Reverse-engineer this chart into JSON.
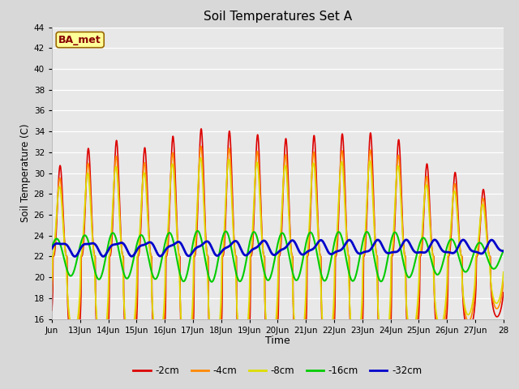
{
  "title": "Soil Temperatures Set A",
  "xlabel": "Time",
  "ylabel": "Soil Temperature (C)",
  "annotation": "BA_met",
  "ylim": [
    16,
    44
  ],
  "xlim_days": [
    12,
    28
  ],
  "x_tick_labels": [
    "Jun",
    "13Jun",
    "14Jun",
    "15Jun",
    "16Jun",
    "17Jun",
    "18Jun",
    "19Jun",
    "20Jun",
    "21Jun",
    "22Jun",
    "23Jun",
    "24Jun",
    "25Jun",
    "26Jun",
    "27Jun",
    "28"
  ],
  "x_tick_positions": [
    12,
    13,
    14,
    15,
    16,
    17,
    18,
    19,
    20,
    21,
    22,
    23,
    24,
    25,
    26,
    27,
    28
  ],
  "series_colors": {
    "-2cm": "#dd0000",
    "-4cm": "#ff8800",
    "-8cm": "#dddd00",
    "-16cm": "#00cc00",
    "-32cm": "#0000cc"
  },
  "series_lw": {
    "-2cm": 1.2,
    "-4cm": 1.2,
    "-8cm": 1.2,
    "-16cm": 1.5,
    "-32cm": 2.0
  },
  "plot_bg_color": "#e8e8e8",
  "grid_color": "#ffffff",
  "fig_bg_color": "#d8d8d8",
  "annotation_bg": "#ffff99",
  "annotation_border": "#996600",
  "annotation_text_color": "#880000",
  "mean": 22.0,
  "amp_2cm": 11.0,
  "amp_4cm": 9.5,
  "amp_8cm": 8.5,
  "amp_16cm": 2.2,
  "amp_32cm": 0.6,
  "phase_2cm": -0.25,
  "phase_4cm": -0.18,
  "phase_8cm": -0.1,
  "phase_16cm": 0.55,
  "phase_32cm": 1.2
}
